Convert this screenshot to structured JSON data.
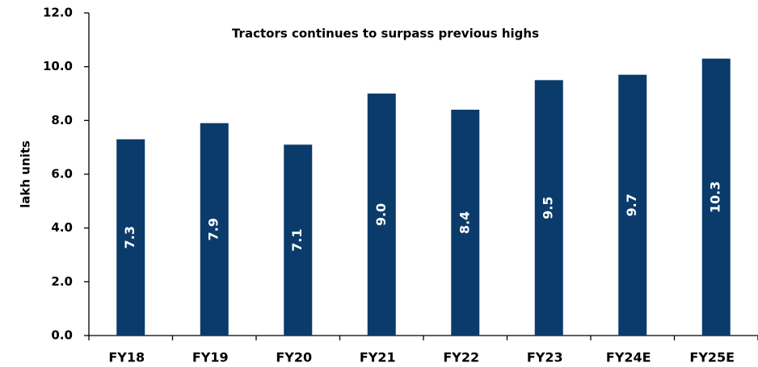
{
  "chart_data": {
    "type": "bar",
    "title": "Tractors continues to surpass previous highs",
    "ylabel": "lakh units",
    "categories": [
      "FY18",
      "FY19",
      "FY20",
      "FY21",
      "FY22",
      "FY23",
      "FY24E",
      "FY25E"
    ],
    "values": [
      7.3,
      7.9,
      7.1,
      9.0,
      8.4,
      9.5,
      9.7,
      10.3
    ],
    "value_labels": [
      "7.3",
      "7.9",
      "7.1",
      "9.0",
      "8.4",
      "9.5",
      "9.7",
      "10.3"
    ],
    "color": "#0b3b6b",
    "ylim": [
      0,
      12
    ],
    "yticks": [
      {
        "value": 0,
        "label": "0.0"
      },
      {
        "value": 2,
        "label": "2.0"
      },
      {
        "value": 4,
        "label": "4.0"
      },
      {
        "value": 6,
        "label": "6.0"
      },
      {
        "value": 8,
        "label": "8.0"
      },
      {
        "value": 10,
        "label": "10.0"
      },
      {
        "value": 12,
        "label": "12.0"
      }
    ],
    "grid": false
  }
}
